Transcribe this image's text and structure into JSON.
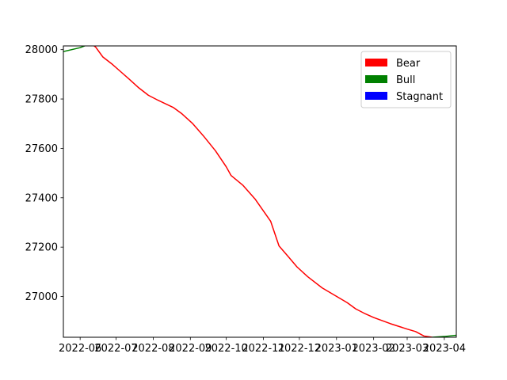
{
  "chart_data": {
    "type": "line",
    "title": "",
    "xlabel": "",
    "ylabel": "",
    "xlim": [
      "2022-05-18",
      "2023-04-11"
    ],
    "ylim": [
      26835,
      28015
    ],
    "grid": false,
    "legend_placement": "top-right",
    "x_tick_labels": [
      "2022-06",
      "2022-07",
      "2022-08",
      "2022-09",
      "2022-10",
      "2022-11",
      "2022-12",
      "2023-01",
      "2023-02",
      "2023-03",
      "2023-04"
    ],
    "y_tick_labels": [
      "27000",
      "27200",
      "27400",
      "27600",
      "27800",
      "28000"
    ],
    "legend": [
      {
        "label": "Bear",
        "color": "#ff0000"
      },
      {
        "label": "Bull",
        "color": "#008000"
      },
      {
        "label": "Stagnant",
        "color": "#0000ff"
      }
    ],
    "series": [
      {
        "name": "Bull",
        "color": "#008000",
        "points": [
          {
            "x": "2022-05-18",
            "y": 27992
          },
          {
            "x": "2022-06-01",
            "y": 28008
          },
          {
            "x": "2022-06-10",
            "y": 28025
          }
        ]
      },
      {
        "name": "Bear",
        "color": "#ff0000",
        "points": [
          {
            "x": "2022-06-10",
            "y": 28025
          },
          {
            "x": "2022-06-14",
            "y": 28010
          },
          {
            "x": "2022-06-20",
            "y": 27970
          },
          {
            "x": "2022-06-28",
            "y": 27940
          },
          {
            "x": "2022-07-05",
            "y": 27910
          },
          {
            "x": "2022-07-12",
            "y": 27880
          },
          {
            "x": "2022-07-20",
            "y": 27845
          },
          {
            "x": "2022-07-28",
            "y": 27815
          },
          {
            "x": "2022-08-05",
            "y": 27795
          },
          {
            "x": "2022-08-18",
            "y": 27765
          },
          {
            "x": "2022-08-25",
            "y": 27740
          },
          {
            "x": "2022-09-03",
            "y": 27700
          },
          {
            "x": "2022-09-12",
            "y": 27650
          },
          {
            "x": "2022-09-22",
            "y": 27590
          },
          {
            "x": "2022-10-01",
            "y": 27525
          },
          {
            "x": "2022-10-05",
            "y": 27490
          },
          {
            "x": "2022-10-15",
            "y": 27450
          },
          {
            "x": "2022-10-25",
            "y": 27395
          },
          {
            "x": "2022-11-07",
            "y": 27305
          },
          {
            "x": "2022-11-14",
            "y": 27205
          },
          {
            "x": "2022-11-22",
            "y": 27160
          },
          {
            "x": "2022-11-29",
            "y": 27120
          },
          {
            "x": "2022-12-08",
            "y": 27080
          },
          {
            "x": "2022-12-20",
            "y": 27035
          },
          {
            "x": "2023-01-03",
            "y": 26995
          },
          {
            "x": "2023-01-10",
            "y": 26975
          },
          {
            "x": "2023-01-17",
            "y": 26950
          },
          {
            "x": "2023-01-25",
            "y": 26930
          },
          {
            "x": "2023-02-01",
            "y": 26915
          },
          {
            "x": "2023-02-15",
            "y": 26890
          },
          {
            "x": "2023-03-01",
            "y": 26868
          },
          {
            "x": "2023-03-08",
            "y": 26858
          },
          {
            "x": "2023-03-15",
            "y": 26840
          },
          {
            "x": "2023-03-22",
            "y": 26835
          }
        ]
      },
      {
        "name": "Bull",
        "color": "#008000",
        "points": [
          {
            "x": "2023-03-22",
            "y": 26835
          },
          {
            "x": "2023-04-01",
            "y": 26838
          },
          {
            "x": "2023-04-11",
            "y": 26843
          }
        ]
      }
    ]
  }
}
